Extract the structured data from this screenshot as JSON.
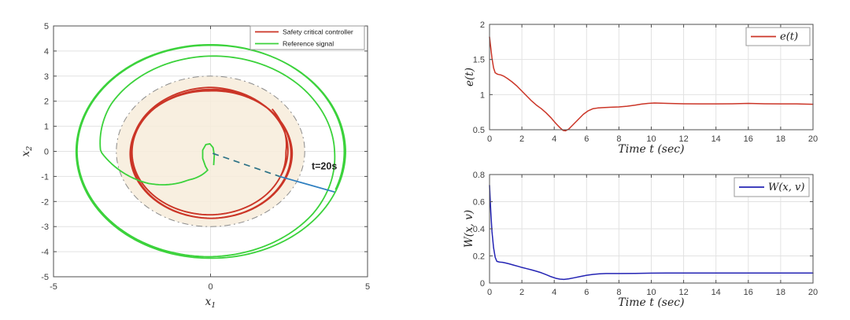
{
  "figure": {
    "background": "#ffffff",
    "frame_color": "#4f4f4f",
    "grid_color": "#e2e2e2",
    "tick_label_color": "#3f3f3f"
  },
  "chart_data": [
    {
      "id": "phase",
      "type": "line",
      "title": "",
      "xlabel": {
        "base": "x",
        "sub": "1"
      },
      "ylabel": {
        "base": "x",
        "sub": "2"
      },
      "xlim": [
        -5,
        5
      ],
      "ylim": [
        -5,
        5
      ],
      "xticks": [
        "-5",
        "0",
        "5"
      ],
      "xtick_vals": [
        -5,
        0,
        5
      ],
      "yticks": [
        "-5",
        "-4",
        "-3",
        "-2",
        "-1",
        "0",
        "1",
        "2",
        "3",
        "4",
        "5"
      ],
      "ytick_vals": [
        -5,
        -4,
        -3,
        -2,
        -1,
        0,
        1,
        2,
        3,
        4,
        5
      ],
      "grid": "on",
      "legend": {
        "position": "top-right",
        "entries": [
          {
            "label": "Safety critical controller",
            "color": "#cb3527"
          },
          {
            "label": "Reference signal",
            "color": "#3bd23b"
          }
        ]
      },
      "safe_set": {
        "shape": "ellipse",
        "center": [
          0,
          0
        ],
        "rx": 3,
        "ry": 3,
        "fill": "#f7ecda",
        "fill_opacity": 0.85,
        "border_style": "dash-dot",
        "border_color": "#8c8c8c"
      },
      "series": [
        {
          "name": "Safety critical controller",
          "color": "#cb3527",
          "width": 1.9,
          "spiral": {
            "center": [
              0,
              -0.05
            ],
            "start_angle_deg": 41.6,
            "clockwise": true,
            "profile": [
              [
                0,
                2.62
              ],
              [
                41,
                2.4
              ],
              [
                131,
                2.48
              ],
              [
                221,
                2.5
              ],
              [
                311,
                2.52
              ],
              [
                401,
                2.56
              ],
              [
                491,
                2.62
              ],
              [
                581,
                2.56
              ],
              [
                671,
                2.46
              ],
              [
                761,
                2.6
              ],
              [
                851,
                2.62
              ],
              [
                941,
                2.52
              ],
              [
                1031,
                2.6
              ],
              [
                1100,
                2.5
              ],
              [
                1146,
                2.42
              ]
            ]
          }
        },
        {
          "name": "Reference signal",
          "color": "#3bd23b",
          "width": 1.8,
          "lead_points": [
            [
              0.1,
              -0.55
            ],
            [
              0.12,
              -0.15
            ],
            [
              0.08,
              0.15
            ],
            [
              -0.02,
              0.3
            ],
            [
              -0.15,
              0.27
            ],
            [
              -0.25,
              0.05
            ],
            [
              -0.25,
              -0.28
            ],
            [
              -0.16,
              -0.6
            ],
            [
              -0.09,
              -0.75
            ]
          ],
          "spiral": {
            "center": [
              0,
              0
            ],
            "start_angle_deg": 263,
            "clockwise": true,
            "profile": [
              [
                0,
                0.75
              ],
              [
                25,
                1.35
              ],
              [
                50,
                2.35
              ],
              [
                83,
                3.5
              ],
              [
                113,
                3.68
              ],
              [
                173,
                3.8
              ],
              [
                233,
                3.88
              ],
              [
                263,
                3.95
              ],
              [
                300,
                4.1
              ],
              [
                353,
                4.2
              ],
              [
                443,
                4.25
              ],
              [
                533,
                4.23
              ],
              [
                623,
                4.3
              ],
              [
                713,
                4.26
              ],
              [
                803,
                4.28
              ],
              [
                900,
                4.25
              ],
              [
                1005,
                4.26
              ]
            ]
          }
        }
      ],
      "annotation": {
        "label": "t=20s",
        "label_pos": [
          3.22,
          -0.72
        ],
        "dashed": [
          [
            0.07,
            -0.08
          ],
          [
            2.2,
            -1.0
          ]
        ],
        "solid": [
          [
            2.2,
            -1.0
          ],
          [
            3.95,
            -1.62
          ]
        ],
        "dashed_color": "#2d7286",
        "solid_color": "#2e7fc0"
      }
    },
    {
      "id": "error",
      "type": "line",
      "title": "",
      "xlabel": "Time t (sec)",
      "ylabel": "e(t)",
      "xlim": [
        0,
        20
      ],
      "ylim": [
        0.5,
        2
      ],
      "xticks": [
        "0",
        "2",
        "4",
        "6",
        "8",
        "10",
        "12",
        "14",
        "16",
        "18",
        "20"
      ],
      "xtick_vals": [
        0,
        2,
        4,
        6,
        8,
        10,
        12,
        14,
        16,
        18,
        20
      ],
      "yticks": [
        "0.5",
        "1",
        "1.5",
        "2"
      ],
      "ytick_vals": [
        0.5,
        1,
        1.5,
        2
      ],
      "grid": "on",
      "legend": {
        "position": "top-right",
        "entries": [
          {
            "label": "e(t)",
            "color": "#cb3527"
          }
        ]
      },
      "series": [
        {
          "name": "e(t)",
          "color": "#cb3527",
          "width": 1.5,
          "points": [
            [
              0,
              1.82
            ],
            [
              0.08,
              1.66
            ],
            [
              0.15,
              1.52
            ],
            [
              0.25,
              1.38
            ],
            [
              0.35,
              1.31
            ],
            [
              0.5,
              1.29
            ],
            [
              0.7,
              1.28
            ],
            [
              0.9,
              1.26
            ],
            [
              1.1,
              1.23
            ],
            [
              1.4,
              1.18
            ],
            [
              1.7,
              1.12
            ],
            [
              2.0,
              1.05
            ],
            [
              2.3,
              0.98
            ],
            [
              2.6,
              0.91
            ],
            [
              2.9,
              0.85
            ],
            [
              3.2,
              0.8
            ],
            [
              3.5,
              0.74
            ],
            [
              3.8,
              0.67
            ],
            [
              4.1,
              0.59
            ],
            [
              4.35,
              0.53
            ],
            [
              4.55,
              0.49
            ],
            [
              4.7,
              0.485
            ],
            [
              4.9,
              0.51
            ],
            [
              5.2,
              0.58
            ],
            [
              5.5,
              0.65
            ],
            [
              5.8,
              0.72
            ],
            [
              6.1,
              0.77
            ],
            [
              6.4,
              0.8
            ],
            [
              6.7,
              0.81
            ],
            [
              7.0,
              0.815
            ],
            [
              7.5,
              0.82
            ],
            [
              8.0,
              0.825
            ],
            [
              8.5,
              0.835
            ],
            [
              9.0,
              0.85
            ],
            [
              9.4,
              0.865
            ],
            [
              9.8,
              0.875
            ],
            [
              10.2,
              0.88
            ],
            [
              10.6,
              0.878
            ],
            [
              11,
              0.875
            ],
            [
              12,
              0.87
            ],
            [
              13,
              0.868
            ],
            [
              14,
              0.868
            ],
            [
              15,
              0.87
            ],
            [
              16,
              0.875
            ],
            [
              17,
              0.87
            ],
            [
              18,
              0.868
            ],
            [
              19,
              0.868
            ],
            [
              20,
              0.862
            ]
          ]
        }
      ]
    },
    {
      "id": "lyapunov",
      "type": "line",
      "title": "",
      "xlabel": "Time t (sec)",
      "ylabel": "W(x, v)",
      "xlim": [
        0,
        20
      ],
      "ylim": [
        0,
        0.8
      ],
      "xticks": [
        "0",
        "2",
        "4",
        "6",
        "8",
        "10",
        "12",
        "14",
        "16",
        "18",
        "20"
      ],
      "xtick_vals": [
        0,
        2,
        4,
        6,
        8,
        10,
        12,
        14,
        16,
        18,
        20
      ],
      "yticks": [
        "0",
        "0.2",
        "0.4",
        "0.6",
        "0.8"
      ],
      "ytick_vals": [
        0,
        0.2,
        0.4,
        0.6,
        0.8
      ],
      "grid": "on",
      "legend": {
        "position": "top-right",
        "entries": [
          {
            "label": "W(x, v)",
            "color": "#2424b4"
          }
        ]
      },
      "series": [
        {
          "name": "W(x, v)",
          "color": "#2424b4",
          "width": 1.5,
          "points": [
            [
              0,
              0.72
            ],
            [
              0.08,
              0.52
            ],
            [
              0.15,
              0.38
            ],
            [
              0.25,
              0.26
            ],
            [
              0.35,
              0.19
            ],
            [
              0.45,
              0.16
            ],
            [
              0.6,
              0.155
            ],
            [
              0.8,
              0.153
            ],
            [
              1.0,
              0.148
            ],
            [
              1.2,
              0.142
            ],
            [
              1.5,
              0.132
            ],
            [
              1.8,
              0.122
            ],
            [
              2.0,
              0.115
            ],
            [
              2.3,
              0.106
            ],
            [
              2.6,
              0.097
            ],
            [
              2.9,
              0.087
            ],
            [
              3.2,
              0.076
            ],
            [
              3.5,
              0.062
            ],
            [
              3.8,
              0.047
            ],
            [
              4.1,
              0.035
            ],
            [
              4.35,
              0.029
            ],
            [
              4.6,
              0.027
            ],
            [
              4.9,
              0.031
            ],
            [
              5.2,
              0.038
            ],
            [
              5.6,
              0.048
            ],
            [
              6.0,
              0.057
            ],
            [
              6.4,
              0.064
            ],
            [
              6.8,
              0.068
            ],
            [
              7.2,
              0.07
            ],
            [
              7.6,
              0.07
            ],
            [
              8.0,
              0.07
            ],
            [
              9.0,
              0.071
            ],
            [
              10.0,
              0.073
            ],
            [
              11,
              0.074
            ],
            [
              12,
              0.074
            ],
            [
              13,
              0.074
            ],
            [
              14,
              0.074
            ],
            [
              15,
              0.074
            ],
            [
              16,
              0.074
            ],
            [
              17,
              0.074
            ],
            [
              18,
              0.074
            ],
            [
              19,
              0.074
            ],
            [
              20,
              0.074
            ]
          ]
        }
      ]
    }
  ]
}
